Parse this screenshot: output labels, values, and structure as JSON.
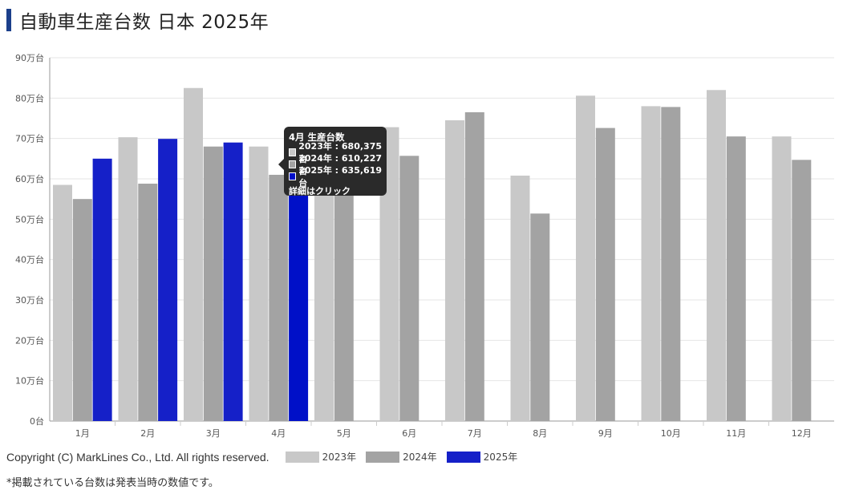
{
  "header": {
    "title": "自動車生産台数 日本 2025年"
  },
  "chart_data": {
    "type": "bar",
    "categories": [
      "1月",
      "2月",
      "3月",
      "4月",
      "5月",
      "6月",
      "7月",
      "8月",
      "9月",
      "10月",
      "11月",
      "12月"
    ],
    "y_ticks": [
      "0台",
      "10万台",
      "20万台",
      "30万台",
      "40万台",
      "50万台",
      "60万台",
      "70万台",
      "80万台",
      "90万台"
    ],
    "ylim": [
      0,
      90
    ],
    "grid": true,
    "series": [
      {
        "name": "2023年",
        "color": "#c8c8c8",
        "values": [
          58.5,
          70.3,
          82.5,
          68.0,
          59.5,
          72.8,
          74.5,
          60.8,
          80.6,
          78.0,
          82.0,
          70.5
        ]
      },
      {
        "name": "2024年",
        "color": "#a3a3a3",
        "values": [
          55.0,
          58.8,
          68.0,
          61.0,
          59.0,
          65.7,
          76.5,
          51.4,
          72.6,
          77.8,
          70.5,
          64.7
        ]
      },
      {
        "name": "2025年",
        "color": "#1520c8",
        "values": [
          65.0,
          69.9,
          69.0,
          63.6,
          null,
          null,
          null,
          null,
          null,
          null,
          null,
          null
        ]
      }
    ],
    "highlight_color": "#0010c8"
  },
  "tooltip": {
    "title": "4月 生産台数",
    "rows": [
      {
        "label": "2023年 : 680,375台",
        "color": "#c8c8c8"
      },
      {
        "label": "2024年 : 610,227台",
        "color": "#a3a3a3"
      },
      {
        "label": "2025年 : 635,619台",
        "color": "#0010c8"
      }
    ],
    "link": "詳細はクリック"
  },
  "footer": {
    "copyright": "Copyright (C) MarkLines Co., Ltd. All rights reserved.",
    "note": "*掲載されている台数は発表当時の数値です。"
  }
}
